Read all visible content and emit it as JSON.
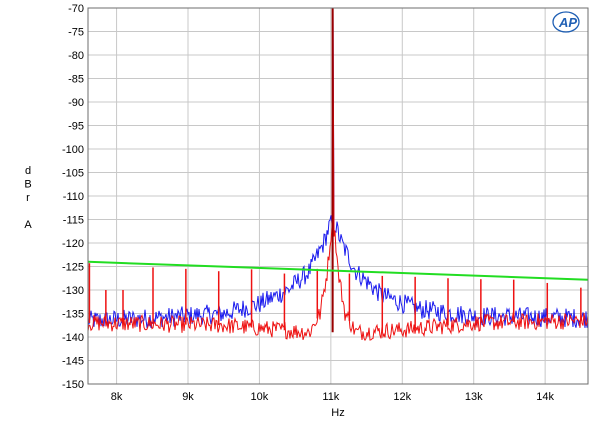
{
  "chart_data": {
    "type": "line",
    "title": "",
    "xlabel": "Hz",
    "ylabel_lines": [
      "d",
      "B",
      "r",
      "",
      "A"
    ],
    "xlim": [
      7600,
      14600
    ],
    "ylim": [
      -150,
      -70
    ],
    "x_ticks": [
      {
        "value": 8000,
        "label": "8k"
      },
      {
        "value": 9000,
        "label": "9k"
      },
      {
        "value": 10000,
        "label": "10k"
      },
      {
        "value": 11000,
        "label": "11k"
      },
      {
        "value": 12000,
        "label": "12k"
      },
      {
        "value": 13000,
        "label": "13k"
      },
      {
        "value": 14000,
        "label": "14k"
      }
    ],
    "y_ticks": [
      -70,
      -75,
      -80,
      -85,
      -90,
      -95,
      -100,
      -105,
      -110,
      -115,
      -120,
      -125,
      -130,
      -135,
      -140,
      -145,
      -150
    ],
    "grid": true,
    "colors": {
      "blue": "#1a1aee",
      "red": "#ee1111",
      "green": "#22dd22",
      "grid": "#c8c8c8",
      "logo": "#1f5fb4"
    },
    "series": [
      {
        "color": "blue",
        "peak": {
          "x": 11025,
          "y": -70
        },
        "skirt_points": [
          [
            7600,
            -136.5
          ],
          [
            8500,
            -136
          ],
          [
            9500,
            -135
          ],
          [
            10000,
            -133
          ],
          [
            10400,
            -130
          ],
          [
            10700,
            -126
          ],
          [
            10900,
            -120
          ],
          [
            10990,
            -116
          ],
          [
            11060,
            -116
          ],
          [
            11150,
            -120
          ],
          [
            11350,
            -126
          ],
          [
            11700,
            -131
          ],
          [
            12200,
            -134
          ],
          [
            13000,
            -135.5
          ],
          [
            14600,
            -136
          ]
        ]
      },
      {
        "color": "red",
        "peak": {
          "x": 11025,
          "y": -70
        },
        "floor": [
          [
            7600,
            -137
          ],
          [
            9500,
            -137.5
          ],
          [
            10300,
            -138.5
          ],
          [
            10700,
            -139
          ],
          [
            10850,
            -135
          ],
          [
            10950,
            -126
          ],
          [
            11000,
            -118
          ],
          [
            11060,
            -118
          ],
          [
            11100,
            -126
          ],
          [
            11200,
            -135
          ],
          [
            11350,
            -139
          ],
          [
            12000,
            -138.5
          ],
          [
            13000,
            -137
          ],
          [
            14600,
            -136.5
          ]
        ],
        "spurs": [
          {
            "x": 7620,
            "y": -124.3
          },
          {
            "x": 7850,
            "y": -130
          },
          {
            "x": 8090,
            "y": -130
          },
          {
            "x": 8510,
            "y": -125.2
          },
          {
            "x": 8970,
            "y": -125.5
          },
          {
            "x": 9430,
            "y": -126
          },
          {
            "x": 9890,
            "y": -125.6
          },
          {
            "x": 10350,
            "y": -126.5
          },
          {
            "x": 10810,
            "y": -125.5
          },
          {
            "x": 11260,
            "y": -126.5
          },
          {
            "x": 11720,
            "y": -127
          },
          {
            "x": 12180,
            "y": -127.2
          },
          {
            "x": 12640,
            "y": -127.5
          },
          {
            "x": 13100,
            "y": -127.7
          },
          {
            "x": 13560,
            "y": -127.8
          },
          {
            "x": 14030,
            "y": -128.5
          },
          {
            "x": 14500,
            "y": -129.5
          }
        ]
      },
      {
        "color": "green",
        "points": [
          [
            7600,
            -124
          ],
          [
            14600,
            -127.8
          ]
        ]
      }
    ]
  }
}
